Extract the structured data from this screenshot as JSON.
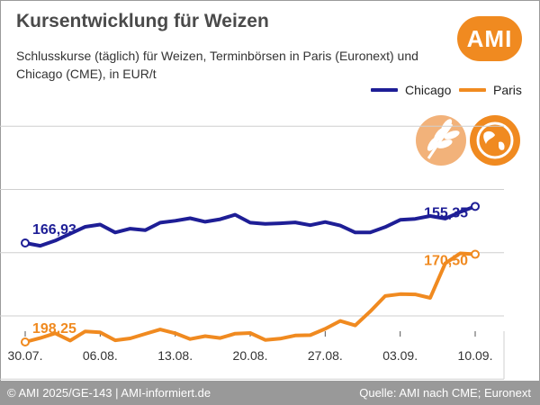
{
  "header": {
    "title": "Kursentwicklung für Weizen",
    "subtitle": "Schlusskurse (täglich) für Weizen, Terminbörsen in Paris (Euronext) und Chicago (CME), in EUR/t",
    "logo_text": "AMI"
  },
  "footer": {
    "left": "© AMI 2025/GE-143 | AMI-informiert.de",
    "right": "Quelle: AMI nach CME; Euronext"
  },
  "colors": {
    "chicago": "#1e1e96",
    "paris": "#f08a20",
    "grid": "#cfcfcf",
    "footer": "#999999"
  },
  "chart_data": {
    "type": "line",
    "x_ticks": [
      "30.07.",
      "06.08.",
      "13.08.",
      "20.08.",
      "27.08.",
      "03.09.",
      "10.09."
    ],
    "ylim": [
      125,
      215
    ],
    "grid": true,
    "legend_position": "top-right",
    "series": [
      {
        "name": "Chicago",
        "color": "#1e1e96",
        "start_label": "166,93",
        "end_label": "155,35",
        "values": [
          166.93,
          167.8,
          166.2,
          164.0,
          161.8,
          161.1,
          163.6,
          162.4,
          162.9,
          160.5,
          159.9,
          159.1,
          160.2,
          159.4,
          158.0,
          160.5,
          160.9,
          160.7,
          160.4,
          161.3,
          160.3,
          161.4,
          163.6,
          163.6,
          161.9,
          159.6,
          159.3,
          158.4,
          159.2,
          157.1,
          155.35
        ]
      },
      {
        "name": "Paris",
        "color": "#f08a20",
        "start_label": "198,25",
        "end_label": "170,50",
        "values": [
          198.25,
          197.0,
          195.5,
          197.8,
          194.9,
          195.2,
          197.7,
          197.1,
          195.7,
          194.3,
          195.5,
          197.3,
          196.4,
          197.0,
          195.6,
          195.4,
          197.6,
          197.2,
          196.2,
          196.1,
          194.1,
          191.6,
          193.0,
          188.6,
          183.7,
          183.1,
          183.2,
          184.3,
          173.4,
          170.2,
          170.5
        ]
      }
    ]
  }
}
